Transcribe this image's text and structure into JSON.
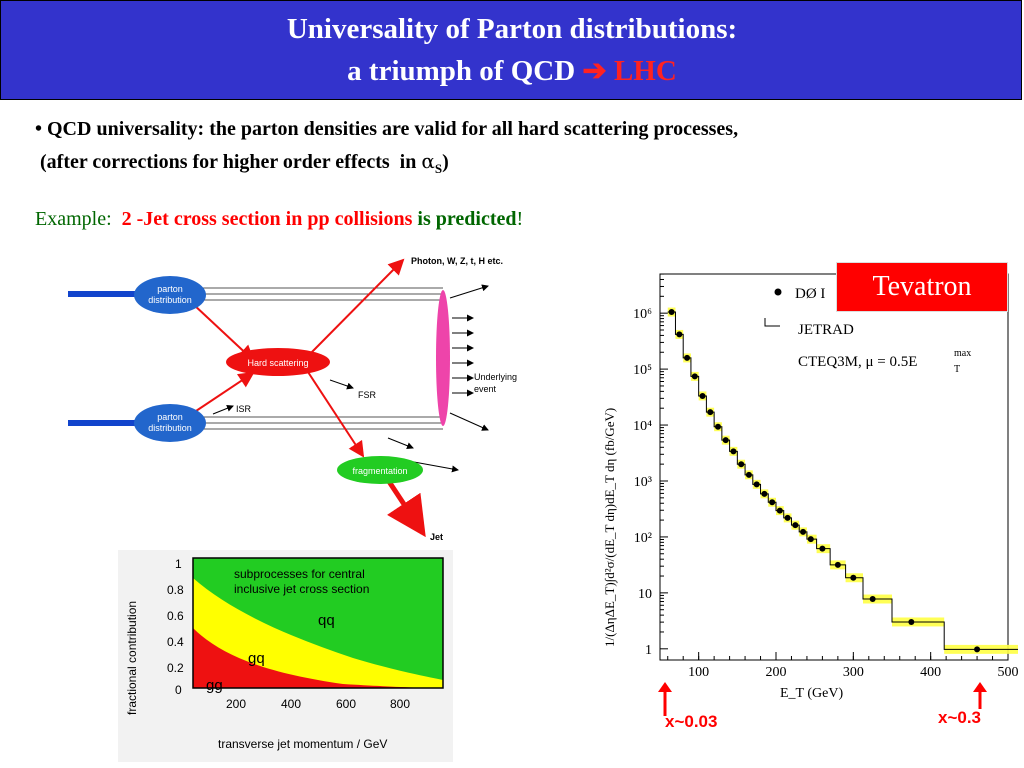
{
  "header": {
    "title_line1": "Universality of Parton distributions:",
    "title_line2": "a triumph of QCD",
    "title_arrow": "➔",
    "title_highlight": "LHC"
  },
  "bullet": {
    "line1": "• QCD universality: the parton densities  are valid for all  hard scattering processes,",
    "line2_prefix": " (after corrections for higher order effects  in ",
    "alpha": "α",
    "alpha_sub": "S",
    "line2_suffix": ")"
  },
  "example": {
    "label": "Example:  ",
    "part1": "2 -Jet cross section  in pp collisions",
    "part2": " is predicted",
    "end": "!"
  },
  "diagram": {
    "top_label": "Photon, W, Z, t, H etc.",
    "parton1": [
      "parton",
      "distribution"
    ],
    "parton2": [
      "parton",
      "distribution"
    ],
    "hard": "Hard scattering",
    "isr": "ISR",
    "fsr": "FSR",
    "underlying": [
      "Underlying",
      "event"
    ],
    "fragmentation": "fragmentation",
    "jet": "Jet"
  },
  "frac_chart": {
    "ylabel": "fractional contribution",
    "xlabel": "transverse jet momentum / GeV",
    "yticks": [
      "1",
      "0.8",
      "0.6",
      "0.4",
      "0.2",
      "0"
    ],
    "xticks": [
      "200",
      "400",
      "600",
      "800"
    ],
    "annotation": [
      "subprocesses for central",
      "inclusive jet cross section"
    ],
    "labels": {
      "qq": "qq",
      "gq": "gq",
      "gg": "gg"
    },
    "colors": {
      "qq": "#22cc22",
      "gq": "#ffff00",
      "gg": "#ee1111"
    }
  },
  "tevatron_label": "Tevatron",
  "x_low": "x~0.03",
  "x_high": "x~0.3",
  "chart_data": {
    "type": "scatter",
    "xlabel": "E_T (GeV)",
    "ylabel": "1/(ΔηΔE_T)∫d²σ/(dE_T dη)dE_T dη (fb/GeV)",
    "xlim": [
      50,
      500
    ],
    "ylim_log10": [
      -0.2,
      6.7
    ],
    "log_y": true,
    "xticks": [
      "100",
      "200",
      "300",
      "400",
      "500"
    ],
    "yticks": [
      "1",
      "10",
      "10²",
      "10³",
      "10⁴",
      "10⁵",
      "10⁶"
    ],
    "legend": {
      "data": "DØ I",
      "theory1": "JETRAD",
      "theory2": "CTEQ3M, μ = 0.5E",
      "theory2_sup": "max",
      "theory2_sub": "T"
    },
    "series": [
      {
        "name": "DØ I",
        "x": [
          65,
          75,
          85,
          95,
          105,
          115,
          125,
          135,
          145,
          155,
          165,
          175,
          185,
          195,
          205,
          215,
          225,
          235,
          245,
          260,
          280,
          300,
          325,
          375,
          460
        ],
        "y": [
          6.02,
          5.62,
          5.2,
          4.87,
          4.52,
          4.23,
          3.97,
          3.73,
          3.53,
          3.3,
          3.11,
          2.94,
          2.77,
          2.62,
          2.47,
          2.34,
          2.21,
          2.09,
          1.96,
          1.79,
          1.5,
          1.27,
          0.89,
          0.48,
          -0.01
        ]
      }
    ]
  }
}
